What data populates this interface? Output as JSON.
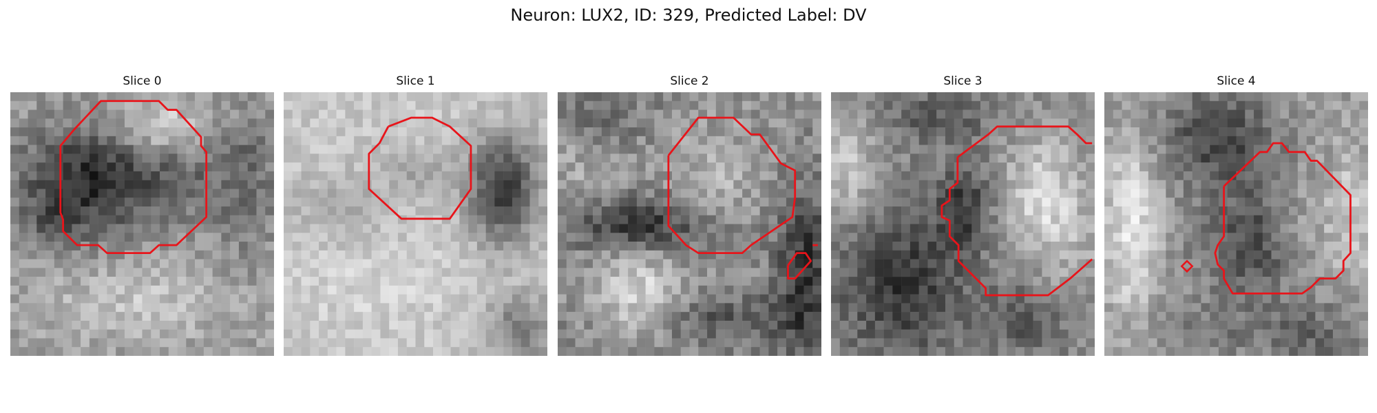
{
  "figure": {
    "title": "Neuron: LUX2, ID: 329, Predicted Label: DV",
    "contour_color": "#e8141a",
    "panels": [
      {
        "title": "Slice 0",
        "tone": "dark blob centered left with bright top-right"
      },
      {
        "title": "Slice 1",
        "tone": "mostly bright with dark region on right"
      },
      {
        "title": "Slice 2",
        "tone": "mixed with dark band across middle"
      },
      {
        "title": "Slice 3",
        "tone": "dark lower-left with bright center-right"
      },
      {
        "title": "Slice 4",
        "tone": "dark center column with bright sides"
      }
    ]
  }
}
